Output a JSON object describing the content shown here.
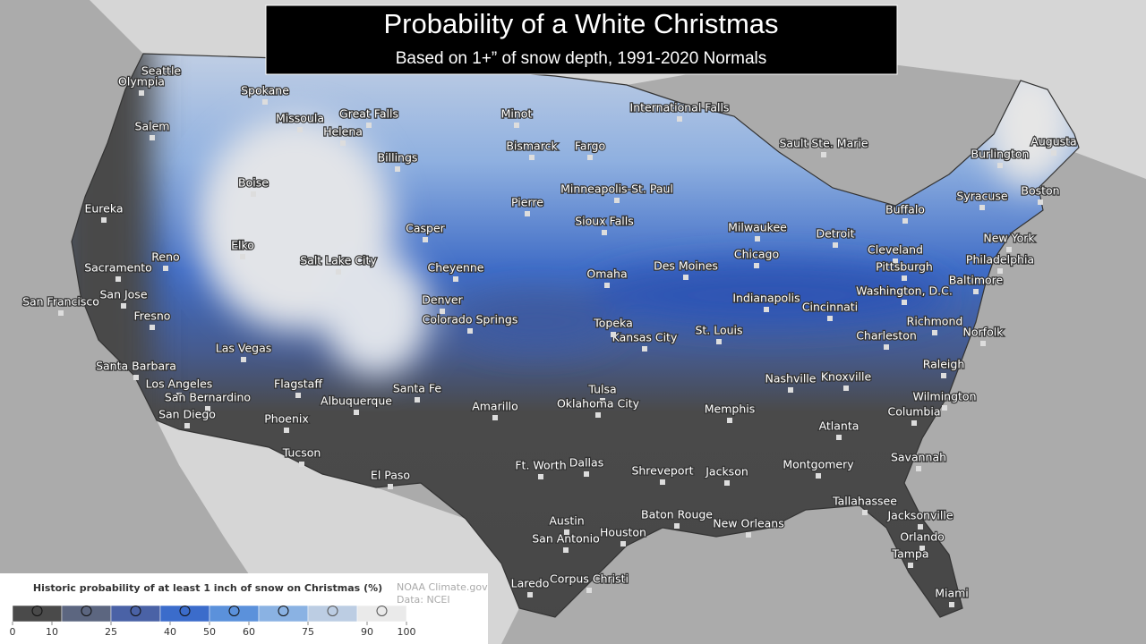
{
  "header": {
    "title": "Probability of a White Christmas",
    "subtitle": "Based on 1+” of snow depth, 1991-2020 Normals"
  },
  "cities": [
    "Seattle",
    "Olympia",
    "Salem",
    "Spokane",
    "Missoula",
    "Great Falls",
    "Helena",
    "Billings",
    "Boise",
    "Eureka",
    "Elko",
    "Reno",
    "Sacramento",
    "San Francisco",
    "San Jose",
    "Fresno",
    "Salt Lake City",
    "Casper",
    "Cheyenne",
    "Denver",
    "Colorado Springs",
    "Las Vegas",
    "Santa Barbara",
    "Los Angeles",
    "San Bernardino",
    "San Diego",
    "Flagstaff",
    "Phoenix",
    "Albuquerque",
    "Santa Fe",
    "Tucson",
    "El Paso",
    "Amarillo",
    "Tulsa",
    "Oklahoma City",
    "Ft. Worth",
    "Dallas",
    "Austin",
    "San Antonio",
    "Houston",
    "Laredo",
    "Corpus Christi",
    "Shreveport",
    "Baton Rouge",
    "New Orleans",
    "Jackson",
    "Memphis",
    "Nashville",
    "Knoxville",
    "Atlanta",
    "Montgomery",
    "Tallahassee",
    "Jacksonville",
    "Orlando",
    "Tampa",
    "Miami",
    "Savannah",
    "Columbia",
    "Wilmington",
    "Raleigh",
    "Norfolk",
    "Richmond",
    "Charleston",
    "Washington, D.C.",
    "Baltimore",
    "Philadelphia",
    "New York",
    "Boston",
    "Burlington",
    "Augusta",
    "Syracuse",
    "Buffalo",
    "Cleveland",
    "Pittsburgh",
    "Cincinnati",
    "Indianapolis",
    "St. Louis",
    "Kansas City",
    "Topeka",
    "Omaha",
    "Des Moines",
    "Chicago",
    "Milwaukee",
    "Detroit",
    "Sioux Falls",
    "Minneapolis-St. Paul",
    "Pierre",
    "Bismarck",
    "Fargo",
    "Minot",
    "International Falls",
    "Sault Ste. Marie"
  ],
  "legend": {
    "title": "Historic probability of at least 1 inch of snow on Christmas (%)",
    "ticks": [
      0,
      10,
      25,
      40,
      50,
      60,
      75,
      90,
      100
    ],
    "colors": [
      "#4a4a4a",
      "#5c6680",
      "#4a62a6",
      "#3b6ccb",
      "#5b91db",
      "#8ab2e3",
      "#bccde3",
      "#eaeaea"
    ]
  },
  "credits": {
    "source": "NOAA Climate.gov",
    "data": "Data: NCEI"
  }
}
